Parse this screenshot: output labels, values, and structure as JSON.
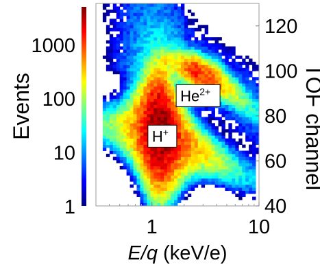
{
  "chart_data": {
    "type": "heatmap",
    "title": "",
    "xlabel_italic": "E/q",
    "xlabel_rest": " (keV/e)",
    "x_scale": "log",
    "xlim": [
      0.3,
      10
    ],
    "x_ticks": [
      {
        "value": 1,
        "label": "1"
      },
      {
        "value": 10,
        "label": "10"
      }
    ],
    "ylabel": "TOF channel",
    "y_axis_side": "right",
    "ylim": [
      40,
      130
    ],
    "y_ticks": [
      {
        "value": 40,
        "label": "40"
      },
      {
        "value": 60,
        "label": "60"
      },
      {
        "value": 80,
        "label": "80"
      },
      {
        "value": 100,
        "label": "100"
      },
      {
        "value": 120,
        "label": "120"
      }
    ],
    "colorbar": {
      "label": "Events",
      "scale": "log",
      "range": [
        1,
        5000
      ],
      "colormap": "jet",
      "ticks": [
        {
          "value": 1,
          "label": "1"
        },
        {
          "value": 10,
          "label": "10"
        },
        {
          "value": 100,
          "label": "100"
        },
        {
          "value": 1000,
          "label": "1000"
        }
      ]
    },
    "colors": [
      "#00007f",
      "#0000ff",
      "#007fff",
      "#00ffff",
      "#7fff7f",
      "#ffff00",
      "#ff7f00",
      "#ff0000",
      "#7f0000"
    ],
    "annotations": [
      {
        "text": "H",
        "sup": "+",
        "x": 1.25,
        "y": 71
      },
      {
        "text": "He",
        "sup": "2+",
        "x": 2.7,
        "y": 89
      }
    ],
    "populations": [
      {
        "label": "H+",
        "peak_events": 5000,
        "ridge": [
          {
            "x": 0.35,
            "y": 76,
            "events": 60
          },
          {
            "x": 0.6,
            "y": 75,
            "events": 300
          },
          {
            "x": 1.0,
            "y": 74,
            "events": 4000
          },
          {
            "x": 1.3,
            "y": 73,
            "events": 5000
          },
          {
            "x": 2.0,
            "y": 68,
            "events": 800
          },
          {
            "x": 4.0,
            "y": 61,
            "events": 150
          },
          {
            "x": 8.0,
            "y": 53,
            "events": 20
          }
        ]
      },
      {
        "label": "He2+",
        "peak_events": 1500,
        "ridge": [
          {
            "x": 1.5,
            "y": 104,
            "events": 150
          },
          {
            "x": 2.5,
            "y": 100,
            "events": 1500
          },
          {
            "x": 4.0,
            "y": 96,
            "events": 700
          },
          {
            "x": 6.0,
            "y": 90,
            "events": 150
          },
          {
            "x": 9.5,
            "y": 82,
            "events": 20
          }
        ]
      }
    ]
  }
}
